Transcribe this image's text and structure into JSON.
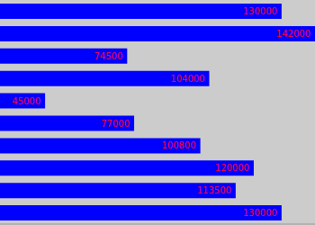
{
  "chart_data": {
    "type": "bar",
    "orientation": "horizontal",
    "values": [
      130000,
      142000,
      74500,
      104000,
      45000,
      77000,
      100800,
      120000,
      113500,
      130000
    ],
    "color": "#0000ff",
    "xlim": [
      28800,
      142000
    ],
    "tick_labels": false,
    "data_labels": true,
    "grid": false
  }
}
